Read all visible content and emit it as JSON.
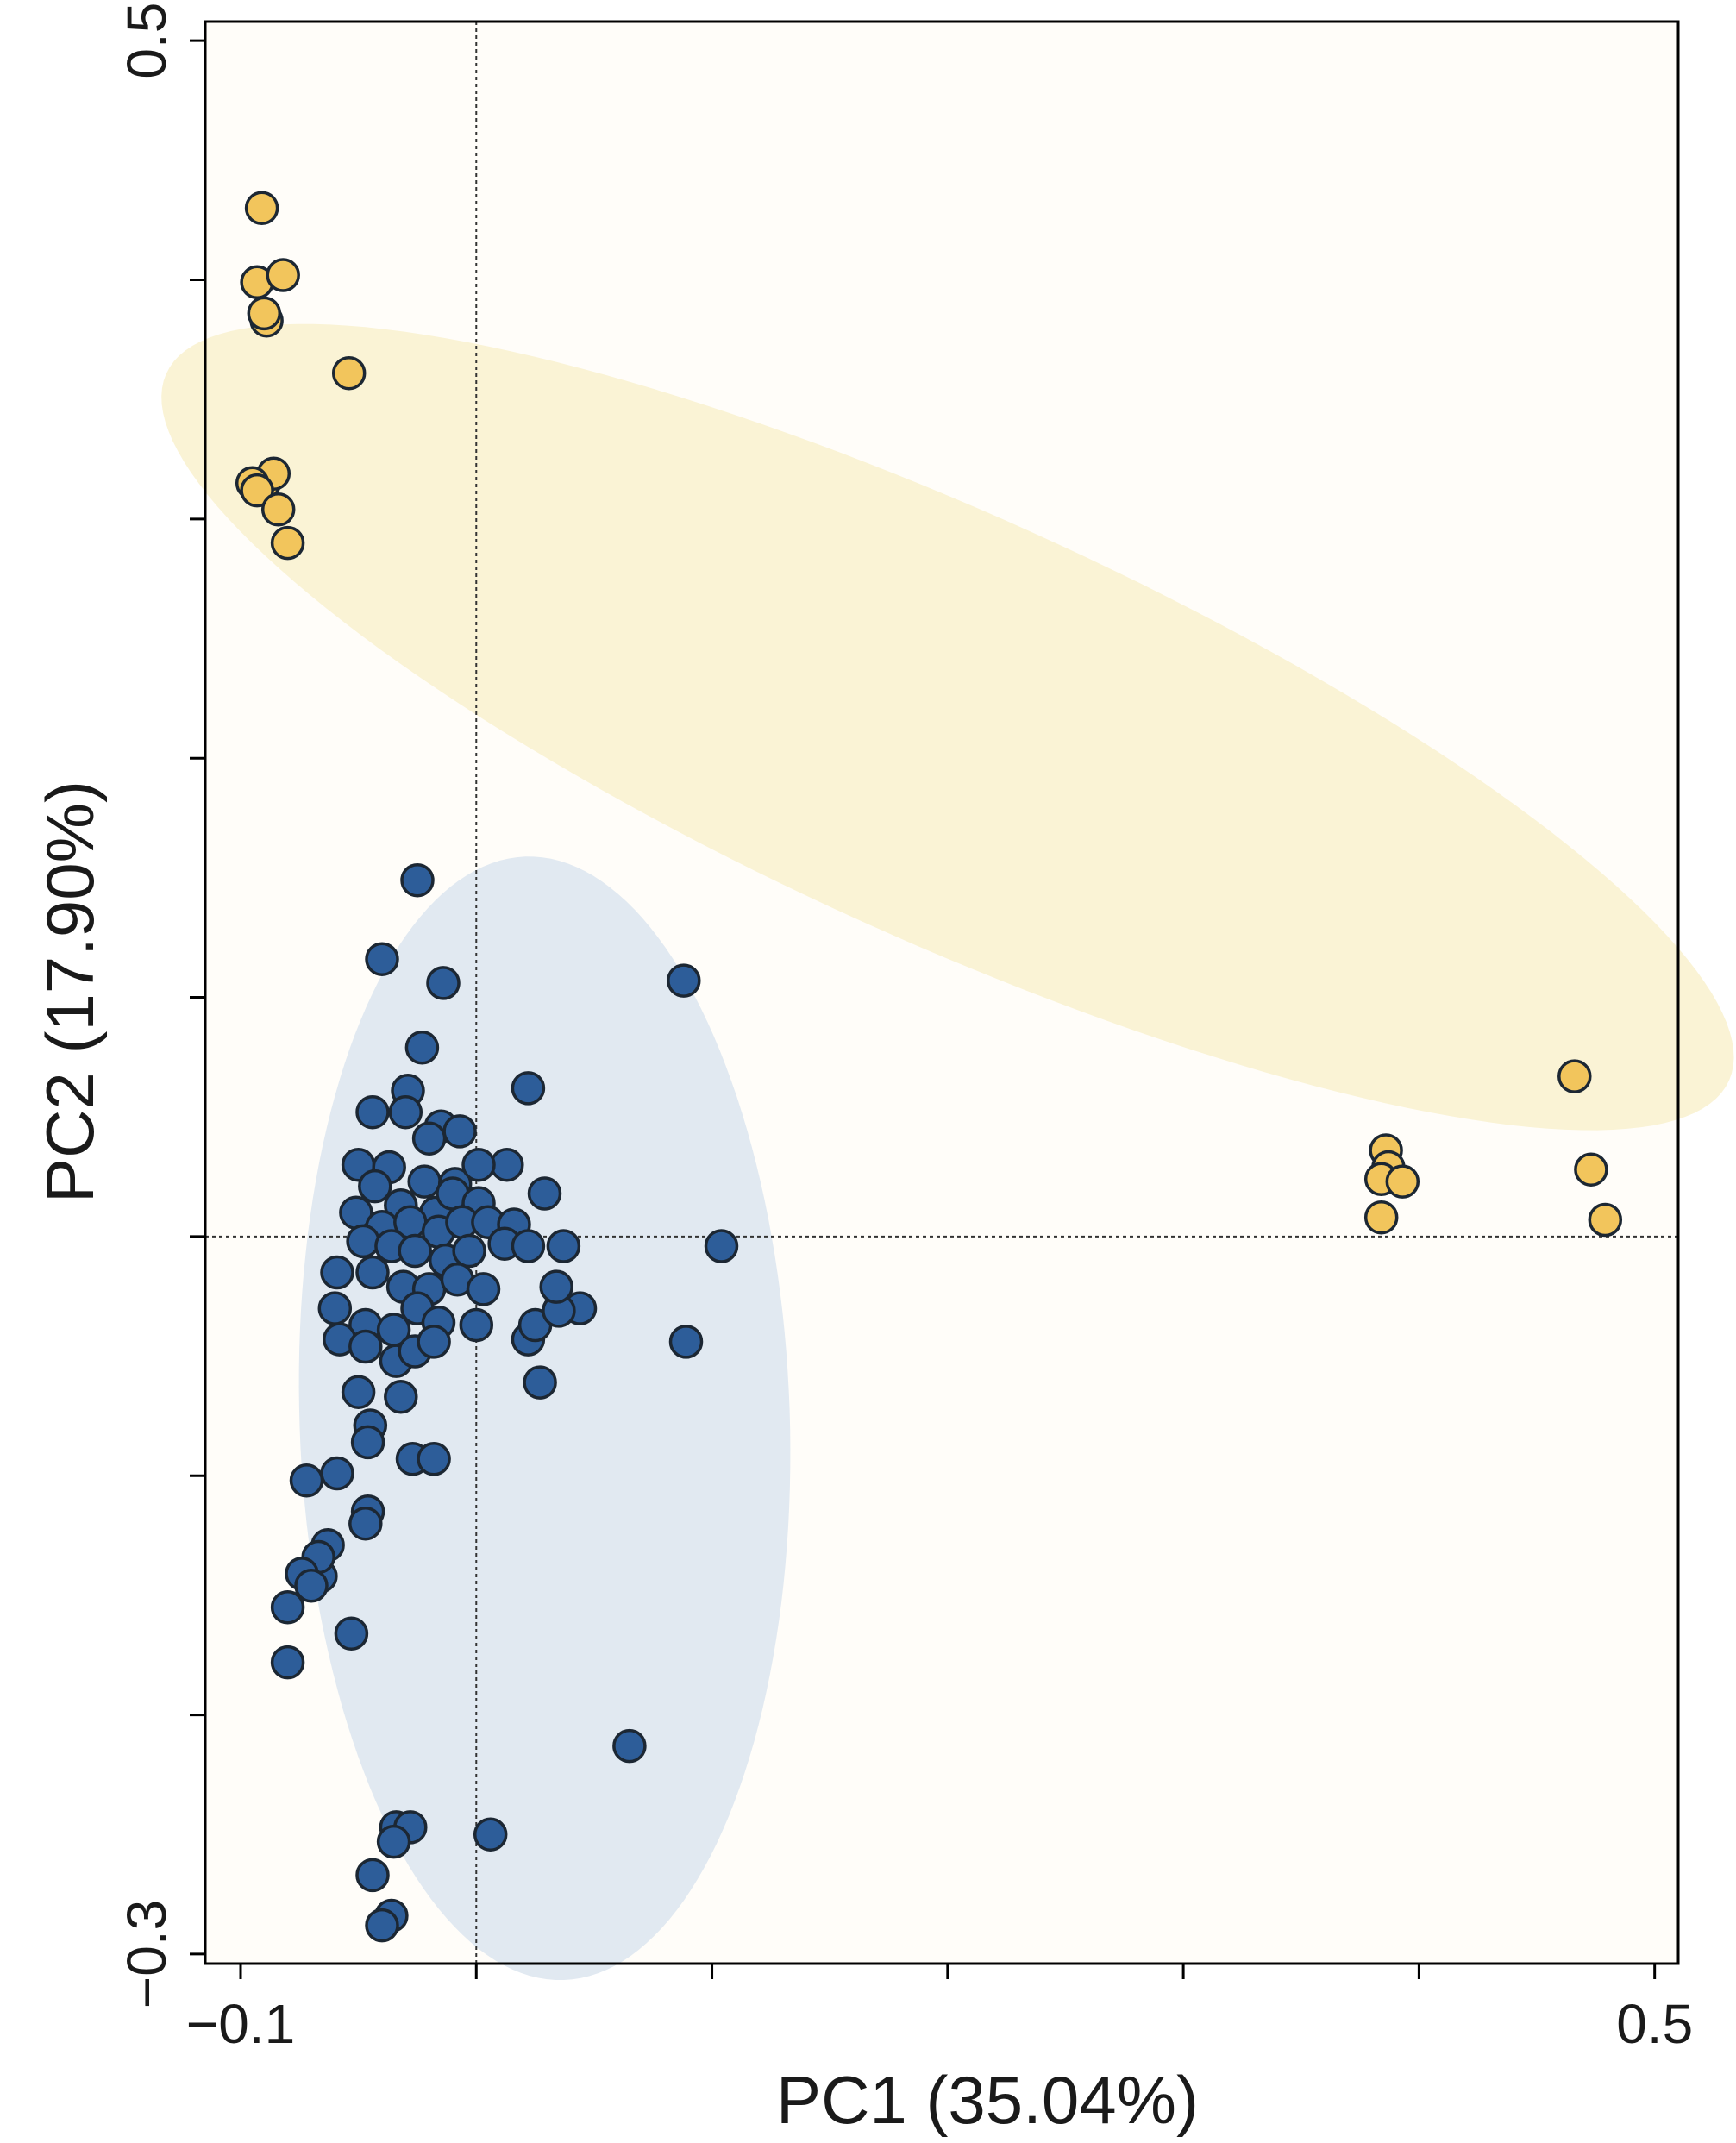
{
  "chart_data": {
    "type": "scatter",
    "title": "",
    "xlabel": "PC1 (35.04%)",
    "ylabel": "PC2 (17.90%)",
    "xlim": [
      -0.115,
      0.51
    ],
    "ylim": [
      -0.304,
      0.508
    ],
    "x_ticks": [
      -0.1,
      0.0,
      0.1,
      0.2,
      0.3,
      0.4,
      0.5
    ],
    "y_ticks": [
      -0.3,
      -0.2,
      -0.1,
      0.0,
      0.1,
      0.2,
      0.3,
      0.4,
      0.5
    ],
    "x_tick_labels": [
      {
        "value": -0.1,
        "text": "−0.1"
      },
      {
        "value": 0.5,
        "text": "0.5"
      }
    ],
    "y_tick_labels": [
      {
        "value": 0.5,
        "text": "0.5"
      },
      {
        "value": -0.3,
        "text": "−0.3"
      }
    ],
    "reference_lines": {
      "x": 0.0,
      "y": 0.0
    },
    "grid": false,
    "legend": "none",
    "colors": {
      "background": "#fffdf9",
      "yellow_point": "#f2c55c",
      "blue_point": "#2d5d99",
      "point_edge": "#1c2733",
      "yellow_ellipse": "#faf3d5",
      "blue_ellipse": "#e1e9f1",
      "axis": "#000000"
    },
    "ellipses": [
      {
        "group": "yellow",
        "center": [
          0.2,
          0.213
        ],
        "semi_axis_major": 0.363,
        "semi_axis_minor": 0.089,
        "angle_deg_data": -24
      },
      {
        "group": "blue",
        "center": [
          0.029,
          -0.076
        ],
        "semi_axis_major": 0.235,
        "semi_axis_minor": 0.104,
        "angle_deg_data": 92
      }
    ],
    "series": [
      {
        "name": "yellow",
        "points": [
          [
            -0.091,
            0.43
          ],
          [
            -0.093,
            0.399
          ],
          [
            -0.082,
            0.402
          ],
          [
            -0.089,
            0.383
          ],
          [
            -0.09,
            0.386
          ],
          [
            -0.054,
            0.361
          ],
          [
            -0.09,
            0.315
          ],
          [
            -0.086,
            0.319
          ],
          [
            -0.095,
            0.315
          ],
          [
            -0.093,
            0.312
          ],
          [
            -0.084,
            0.304
          ],
          [
            -0.08,
            0.29
          ],
          [
            0.386,
            0.036
          ],
          [
            0.387,
            0.029
          ],
          [
            0.384,
            0.024
          ],
          [
            0.393,
            0.023
          ],
          [
            0.384,
            0.008
          ],
          [
            0.466,
            0.067
          ],
          [
            0.473,
            0.028
          ],
          [
            0.479,
            0.007
          ]
        ]
      },
      {
        "name": "blue",
        "points": [
          [
            -0.025,
            0.149
          ],
          [
            -0.04,
            0.116
          ],
          [
            -0.014,
            0.106
          ],
          [
            0.088,
            0.107
          ],
          [
            -0.023,
            0.079
          ],
          [
            -0.029,
            0.061
          ],
          [
            -0.044,
            0.052
          ],
          [
            0.022,
            0.062
          ],
          [
            -0.015,
            0.046
          ],
          [
            -0.03,
            0.052
          ],
          [
            -0.02,
            0.041
          ],
          [
            -0.007,
            0.044
          ],
          [
            -0.05,
            0.03
          ],
          [
            -0.037,
            0.029
          ],
          [
            -0.022,
            0.023
          ],
          [
            -0.009,
            0.022
          ],
          [
            0.013,
            0.03
          ],
          [
            0.001,
            0.03
          ],
          [
            -0.043,
            0.021
          ],
          [
            -0.032,
            0.013
          ],
          [
            -0.017,
            0.01
          ],
          [
            -0.01,
            0.018
          ],
          [
            0.001,
            0.014
          ],
          [
            -0.051,
            0.01
          ],
          [
            -0.04,
            0.004
          ],
          [
            -0.028,
            0.006
          ],
          [
            -0.016,
            0.002
          ],
          [
            -0.006,
            0.006
          ],
          [
            0.005,
            0.006
          ],
          [
            0.016,
            0.005
          ],
          [
            0.029,
            0.018
          ],
          [
            -0.048,
            -0.002
          ],
          [
            -0.036,
            -0.004
          ],
          [
            -0.026,
            -0.006
          ],
          [
            -0.013,
            -0.01
          ],
          [
            -0.003,
            -0.006
          ],
          [
            0.012,
            -0.003
          ],
          [
            0.022,
            -0.004
          ],
          [
            0.037,
            -0.004
          ],
          [
            -0.059,
            -0.015
          ],
          [
            -0.044,
            -0.015
          ],
          [
            -0.031,
            -0.021
          ],
          [
            -0.02,
            -0.022
          ],
          [
            -0.008,
            -0.018
          ],
          [
            0.003,
            -0.022
          ],
          [
            -0.06,
            -0.03
          ],
          [
            -0.047,
            -0.037
          ],
          [
            -0.035,
            -0.039
          ],
          [
            -0.025,
            -0.03
          ],
          [
            -0.016,
            -0.036
          ],
          [
            -0.058,
            -0.043
          ],
          [
            -0.047,
            -0.046
          ],
          [
            -0.034,
            -0.052
          ],
          [
            -0.026,
            -0.048
          ],
          [
            -0.018,
            -0.044
          ],
          [
            0.0,
            -0.037
          ],
          [
            0.022,
            -0.043
          ],
          [
            0.025,
            -0.037
          ],
          [
            0.044,
            -0.03
          ],
          [
            0.035,
            -0.031
          ],
          [
            -0.05,
            -0.065
          ],
          [
            -0.032,
            -0.067
          ],
          [
            -0.045,
            -0.079
          ],
          [
            -0.046,
            -0.086
          ],
          [
            -0.027,
            -0.093
          ],
          [
            -0.018,
            -0.093
          ],
          [
            0.089,
            -0.044
          ],
          [
            0.104,
            -0.004
          ],
          [
            0.034,
            -0.021
          ],
          [
            0.027,
            -0.061
          ],
          [
            -0.072,
            -0.102
          ],
          [
            -0.059,
            -0.099
          ],
          [
            -0.046,
            -0.115
          ],
          [
            -0.047,
            -0.12
          ],
          [
            -0.063,
            -0.129
          ],
          [
            -0.066,
            -0.142
          ],
          [
            -0.067,
            -0.134
          ],
          [
            -0.074,
            -0.141
          ],
          [
            -0.08,
            -0.155
          ],
          [
            -0.07,
            -0.146
          ],
          [
            -0.053,
            -0.166
          ],
          [
            -0.08,
            -0.178
          ],
          [
            0.065,
            -0.213
          ],
          [
            -0.034,
            -0.247
          ],
          [
            -0.028,
            -0.247
          ],
          [
            -0.035,
            -0.253
          ],
          [
            -0.044,
            -0.267
          ],
          [
            0.006,
            -0.25
          ],
          [
            -0.036,
            -0.284
          ],
          [
            -0.04,
            -0.288
          ]
        ]
      }
    ]
  }
}
